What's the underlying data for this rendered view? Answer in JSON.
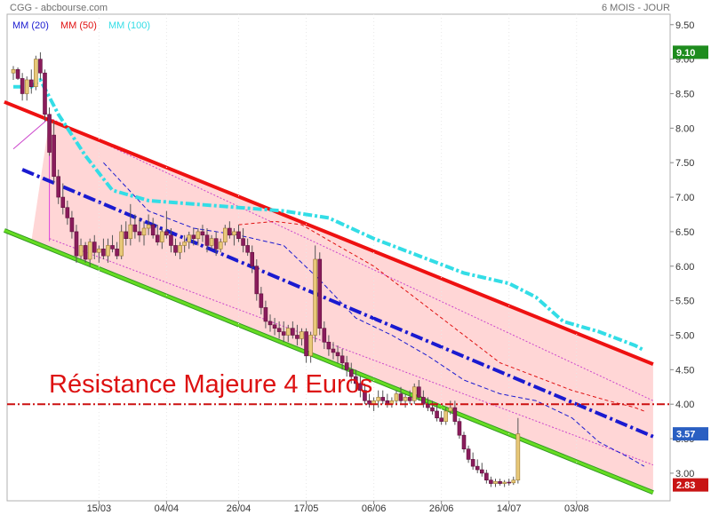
{
  "header": {
    "source": "CGG - abcbourse.com",
    "period": "6 MOIS - JOUR"
  },
  "legend": [
    {
      "label": "MM (20)",
      "color": "#1a1ad0"
    },
    {
      "label": "MM (50)",
      "color": "#e01010"
    },
    {
      "label": "MM (100)",
      "color": "#33dde6"
    }
  ],
  "annotation": {
    "text": "Résistance Majeure  4 Euros",
    "color": "#dd1111"
  },
  "price_badges": [
    {
      "value": 9.1,
      "label": "9.10",
      "color": "#1e8c1e"
    },
    {
      "value": 3.57,
      "label": "3.57",
      "color": "#2a5fc2"
    },
    {
      "value": 2.83,
      "label": "2.83",
      "color": "#c81414"
    }
  ],
  "chart_data": {
    "type": "candlestick",
    "title": "",
    "y_range": [
      2.6,
      9.6
    ],
    "y_ticks": [
      3.0,
      3.5,
      4.0,
      4.5,
      5.0,
      5.5,
      6.0,
      6.5,
      7.0,
      7.5,
      8.0,
      8.5,
      9.0,
      9.5
    ],
    "y_tick_labels": [
      "3.00",
      "3.50",
      "4.00",
      "4.50",
      "5.00",
      "5.50",
      "6.00",
      "6.50",
      "7.00",
      "7.50",
      "8.00",
      "8.50",
      "9.00",
      "9.50"
    ],
    "x_tick_labels": [
      {
        "label": "15/03",
        "index": 19
      },
      {
        "label": "04/04",
        "index": 34
      },
      {
        "label": "26/04",
        "index": 50
      },
      {
        "label": "17/05",
        "index": 65
      },
      {
        "label": "06/06",
        "index": 80
      },
      {
        "label": "26/06",
        "index": 95
      },
      {
        "label": "14/07",
        "index": 110
      },
      {
        "label": "03/08",
        "index": 125
      }
    ],
    "candles": [
      {
        "o": 8.8,
        "h": 8.9,
        "l": 8.7,
        "c": 8.85
      },
      {
        "o": 8.85,
        "h": 8.88,
        "l": 8.7,
        "c": 8.72
      },
      {
        "o": 8.72,
        "h": 8.8,
        "l": 8.4,
        "c": 8.5
      },
      {
        "o": 8.5,
        "h": 8.75,
        "l": 8.4,
        "c": 8.7
      },
      {
        "o": 8.7,
        "h": 8.85,
        "l": 8.5,
        "c": 8.6
      },
      {
        "o": 8.6,
        "h": 9.05,
        "l": 8.55,
        "c": 9.0
      },
      {
        "o": 9.0,
        "h": 9.1,
        "l": 8.7,
        "c": 8.8
      },
      {
        "o": 8.8,
        "h": 8.85,
        "l": 8.1,
        "c": 8.2
      },
      {
        "o": 8.2,
        "h": 8.3,
        "l": 7.6,
        "c": 7.65
      },
      {
        "o": 7.9,
        "h": 8.1,
        "l": 7.2,
        "c": 7.3
      },
      {
        "o": 7.3,
        "h": 7.4,
        "l": 6.9,
        "c": 7.0
      },
      {
        "o": 7.0,
        "h": 7.2,
        "l": 6.75,
        "c": 6.85
      },
      {
        "o": 6.85,
        "h": 6.95,
        "l": 6.6,
        "c": 6.7
      },
      {
        "o": 6.7,
        "h": 6.8,
        "l": 6.4,
        "c": 6.5
      },
      {
        "o": 6.5,
        "h": 6.6,
        "l": 6.05,
        "c": 6.15
      },
      {
        "o": 6.15,
        "h": 6.4,
        "l": 6.1,
        "c": 6.3
      },
      {
        "o": 6.3,
        "h": 6.35,
        "l": 6.05,
        "c": 6.1
      },
      {
        "o": 6.1,
        "h": 6.4,
        "l": 6.0,
        "c": 6.35
      },
      {
        "o": 6.35,
        "h": 6.45,
        "l": 6.1,
        "c": 6.2
      },
      {
        "o": 6.2,
        "h": 6.3,
        "l": 6.05,
        "c": 6.25
      },
      {
        "o": 6.25,
        "h": 6.4,
        "l": 6.1,
        "c": 6.15
      },
      {
        "o": 6.15,
        "h": 6.4,
        "l": 6.05,
        "c": 6.3
      },
      {
        "o": 6.3,
        "h": 6.45,
        "l": 6.2,
        "c": 6.25
      },
      {
        "o": 6.25,
        "h": 6.35,
        "l": 6.1,
        "c": 6.15
      },
      {
        "o": 6.15,
        "h": 6.6,
        "l": 6.1,
        "c": 6.5
      },
      {
        "o": 6.5,
        "h": 6.65,
        "l": 6.3,
        "c": 6.4
      },
      {
        "o": 6.4,
        "h": 6.9,
        "l": 6.3,
        "c": 6.6
      },
      {
        "o": 6.6,
        "h": 6.75,
        "l": 6.4,
        "c": 6.5
      },
      {
        "o": 6.5,
        "h": 6.7,
        "l": 6.35,
        "c": 6.45
      },
      {
        "o": 6.45,
        "h": 6.65,
        "l": 6.3,
        "c": 6.55
      },
      {
        "o": 6.55,
        "h": 6.75,
        "l": 6.45,
        "c": 6.6
      },
      {
        "o": 6.6,
        "h": 6.7,
        "l": 6.4,
        "c": 6.45
      },
      {
        "o": 6.45,
        "h": 6.6,
        "l": 6.3,
        "c": 6.35
      },
      {
        "o": 6.35,
        "h": 6.55,
        "l": 6.25,
        "c": 6.5
      },
      {
        "o": 6.5,
        "h": 6.8,
        "l": 6.4,
        "c": 6.45
      },
      {
        "o": 6.45,
        "h": 6.55,
        "l": 6.2,
        "c": 6.3
      },
      {
        "o": 6.3,
        "h": 6.4,
        "l": 6.15,
        "c": 6.2
      },
      {
        "o": 6.2,
        "h": 6.35,
        "l": 6.1,
        "c": 6.3
      },
      {
        "o": 6.3,
        "h": 6.45,
        "l": 6.2,
        "c": 6.35
      },
      {
        "o": 6.35,
        "h": 6.5,
        "l": 6.25,
        "c": 6.45
      },
      {
        "o": 6.45,
        "h": 6.55,
        "l": 6.3,
        "c": 6.4
      },
      {
        "o": 6.4,
        "h": 6.55,
        "l": 6.3,
        "c": 6.5
      },
      {
        "o": 6.5,
        "h": 6.6,
        "l": 6.35,
        "c": 6.45
      },
      {
        "o": 6.45,
        "h": 6.55,
        "l": 6.2,
        "c": 6.3
      },
      {
        "o": 6.3,
        "h": 6.45,
        "l": 6.25,
        "c": 6.4
      },
      {
        "o": 6.4,
        "h": 6.5,
        "l": 6.15,
        "c": 6.25
      },
      {
        "o": 6.25,
        "h": 6.4,
        "l": 6.2,
        "c": 6.35
      },
      {
        "o": 6.35,
        "h": 6.6,
        "l": 6.3,
        "c": 6.55
      },
      {
        "o": 6.55,
        "h": 6.65,
        "l": 6.4,
        "c": 6.45
      },
      {
        "o": 6.45,
        "h": 6.55,
        "l": 6.3,
        "c": 6.5
      },
      {
        "o": 6.5,
        "h": 6.6,
        "l": 6.35,
        "c": 6.4
      },
      {
        "o": 6.4,
        "h": 6.55,
        "l": 6.2,
        "c": 6.3
      },
      {
        "o": 6.3,
        "h": 6.4,
        "l": 6.15,
        "c": 6.2
      },
      {
        "o": 6.2,
        "h": 6.3,
        "l": 5.9,
        "c": 6.0
      },
      {
        "o": 6.0,
        "h": 6.1,
        "l": 5.5,
        "c": 5.6
      },
      {
        "o": 5.6,
        "h": 5.7,
        "l": 5.3,
        "c": 5.4
      },
      {
        "o": 5.4,
        "h": 5.5,
        "l": 5.1,
        "c": 5.2
      },
      {
        "o": 5.2,
        "h": 5.3,
        "l": 5.05,
        "c": 5.15
      },
      {
        "o": 5.15,
        "h": 5.25,
        "l": 5.0,
        "c": 5.1
      },
      {
        "o": 5.1,
        "h": 5.2,
        "l": 4.95,
        "c": 5.05
      },
      {
        "o": 5.05,
        "h": 5.2,
        "l": 4.9,
        "c": 5.0
      },
      {
        "o": 5.0,
        "h": 5.15,
        "l": 4.9,
        "c": 5.1
      },
      {
        "o": 5.1,
        "h": 5.2,
        "l": 4.95,
        "c": 5.0
      },
      {
        "o": 5.0,
        "h": 5.15,
        "l": 4.85,
        "c": 4.95
      },
      {
        "o": 4.95,
        "h": 5.1,
        "l": 4.85,
        "c": 5.05
      },
      {
        "o": 5.05,
        "h": 5.1,
        "l": 4.6,
        "c": 4.7
      },
      {
        "o": 4.7,
        "h": 5.05,
        "l": 4.6,
        "c": 5.0
      },
      {
        "o": 5.0,
        "h": 6.3,
        "l": 4.9,
        "c": 6.1
      },
      {
        "o": 6.1,
        "h": 6.2,
        "l": 5.0,
        "c": 5.1
      },
      {
        "o": 5.1,
        "h": 5.2,
        "l": 4.8,
        "c": 4.9
      },
      {
        "o": 4.9,
        "h": 5.0,
        "l": 4.7,
        "c": 4.8
      },
      {
        "o": 4.8,
        "h": 4.9,
        "l": 4.65,
        "c": 4.75
      },
      {
        "o": 4.75,
        "h": 4.85,
        "l": 4.6,
        "c": 4.7
      },
      {
        "o": 4.7,
        "h": 4.8,
        "l": 4.5,
        "c": 4.6
      },
      {
        "o": 4.6,
        "h": 4.7,
        "l": 4.4,
        "c": 4.5
      },
      {
        "o": 4.5,
        "h": 4.6,
        "l": 4.3,
        "c": 4.4
      },
      {
        "o": 4.4,
        "h": 4.5,
        "l": 4.2,
        "c": 4.3
      },
      {
        "o": 4.3,
        "h": 4.4,
        "l": 4.1,
        "c": 4.2
      },
      {
        "o": 4.2,
        "h": 4.3,
        "l": 4.0,
        "c": 4.05
      },
      {
        "o": 4.05,
        "h": 4.15,
        "l": 3.95,
        "c": 4.0
      },
      {
        "o": 4.0,
        "h": 4.1,
        "l": 3.9,
        "c": 4.05
      },
      {
        "o": 4.05,
        "h": 4.2,
        "l": 3.95,
        "c": 4.1
      },
      {
        "o": 4.1,
        "h": 4.2,
        "l": 4.0,
        "c": 4.05
      },
      {
        "o": 4.05,
        "h": 4.15,
        "l": 3.95,
        "c": 4.0
      },
      {
        "o": 4.0,
        "h": 4.1,
        "l": 3.95,
        "c": 4.05
      },
      {
        "o": 4.05,
        "h": 4.2,
        "l": 4.0,
        "c": 4.15
      },
      {
        "o": 4.15,
        "h": 4.25,
        "l": 4.0,
        "c": 4.05
      },
      {
        "o": 4.05,
        "h": 4.15,
        "l": 3.95,
        "c": 4.1
      },
      {
        "o": 4.1,
        "h": 4.2,
        "l": 4.0,
        "c": 4.05
      },
      {
        "o": 4.05,
        "h": 4.3,
        "l": 4.0,
        "c": 4.25
      },
      {
        "o": 4.25,
        "h": 4.35,
        "l": 4.05,
        "c": 4.1
      },
      {
        "o": 4.1,
        "h": 4.2,
        "l": 3.95,
        "c": 4.0
      },
      {
        "o": 4.0,
        "h": 4.1,
        "l": 3.9,
        "c": 3.95
      },
      {
        "o": 3.95,
        "h": 4.05,
        "l": 3.85,
        "c": 3.9
      },
      {
        "o": 3.9,
        "h": 4.0,
        "l": 3.75,
        "c": 3.8
      },
      {
        "o": 3.8,
        "h": 3.9,
        "l": 3.7,
        "c": 3.75
      },
      {
        "o": 3.75,
        "h": 3.95,
        "l": 3.7,
        "c": 3.9
      },
      {
        "o": 3.9,
        "h": 4.05,
        "l": 3.85,
        "c": 3.95
      },
      {
        "o": 3.95,
        "h": 4.05,
        "l": 3.7,
        "c": 3.75
      },
      {
        "o": 3.75,
        "h": 3.8,
        "l": 3.5,
        "c": 3.55
      },
      {
        "o": 3.55,
        "h": 3.6,
        "l": 3.3,
        "c": 3.35
      },
      {
        "o": 3.35,
        "h": 3.4,
        "l": 3.15,
        "c": 3.2
      },
      {
        "o": 3.2,
        "h": 3.3,
        "l": 3.05,
        "c": 3.1
      },
      {
        "o": 3.1,
        "h": 3.2,
        "l": 3.0,
        "c": 3.05
      },
      {
        "o": 3.05,
        "h": 3.15,
        "l": 2.95,
        "c": 3.0
      },
      {
        "o": 3.0,
        "h": 3.05,
        "l": 2.85,
        "c": 2.9
      },
      {
        "o": 2.9,
        "h": 2.95,
        "l": 2.8,
        "c": 2.85
      },
      {
        "o": 2.85,
        "h": 2.92,
        "l": 2.8,
        "c": 2.88
      },
      {
        "o": 2.88,
        "h": 2.92,
        "l": 2.82,
        "c": 2.85
      },
      {
        "o": 2.85,
        "h": 2.9,
        "l": 2.8,
        "c": 2.87
      },
      {
        "o": 2.87,
        "h": 2.92,
        "l": 2.82,
        "c": 2.86
      },
      {
        "o": 2.86,
        "h": 2.95,
        "l": 2.83,
        "c": 2.9
      },
      {
        "o": 2.9,
        "h": 3.8,
        "l": 2.85,
        "c": 3.57
      }
    ],
    "moving_averages": [
      {
        "name": "MM (20)",
        "color": "#1a1ad0",
        "points": [
          [
            20,
            7.5
          ],
          [
            30,
            6.8
          ],
          [
            40,
            6.55
          ],
          [
            50,
            6.45
          ],
          [
            60,
            6.3
          ],
          [
            68,
            5.8
          ],
          [
            76,
            5.25
          ],
          [
            84,
            5.0
          ],
          [
            92,
            4.7
          ],
          [
            100,
            4.35
          ],
          [
            108,
            4.15
          ],
          [
            116,
            4.05
          ],
          [
            124,
            3.8
          ],
          [
            130,
            3.45
          ],
          [
            136,
            3.25
          ],
          [
            140,
            3.1
          ]
        ]
      },
      {
        "name": "MM (50)",
        "color": "#e01010",
        "points": [
          [
            50,
            6.6
          ],
          [
            58,
            6.65
          ],
          [
            64,
            6.6
          ],
          [
            72,
            6.3
          ],
          [
            80,
            6.0
          ],
          [
            90,
            5.5
          ],
          [
            100,
            5.0
          ],
          [
            108,
            4.6
          ],
          [
            116,
            4.4
          ],
          [
            124,
            4.2
          ],
          [
            132,
            4.05
          ],
          [
            138,
            3.95
          ],
          [
            140,
            3.9
          ]
        ]
      },
      {
        "name": "MM (100)",
        "color": "#33dde6",
        "points": [
          [
            0,
            8.6
          ],
          [
            4,
            8.6
          ],
          [
            6,
            8.7
          ],
          [
            10,
            8.2
          ],
          [
            16,
            7.6
          ],
          [
            22,
            7.1
          ],
          [
            30,
            6.95
          ],
          [
            40,
            6.9
          ],
          [
            50,
            6.85
          ],
          [
            60,
            6.8
          ],
          [
            70,
            6.7
          ],
          [
            80,
            6.4
          ],
          [
            90,
            6.15
          ],
          [
            100,
            5.9
          ],
          [
            110,
            5.75
          ],
          [
            116,
            5.55
          ],
          [
            122,
            5.2
          ],
          [
            130,
            5.05
          ],
          [
            138,
            4.85
          ],
          [
            140,
            4.78
          ]
        ]
      }
    ],
    "channel": {
      "resistance": [
        [
          -2,
          8.38
        ],
        [
          142,
          4.58
        ]
      ],
      "support": [
        [
          -2,
          6.52
        ],
        [
          142,
          2.72
        ]
      ],
      "midline": [
        [
          2,
          7.4
        ],
        [
          142,
          3.53
        ]
      ],
      "inner_upper": [
        [
          8,
          8.15
        ],
        [
          142,
          4.05
        ]
      ],
      "inner_lower": [
        [
          8,
          6.4
        ],
        [
          142,
          3.12
        ]
      ],
      "fill_start_index": 8,
      "color_resistance": "#ee1111",
      "color_support": "#66dd22",
      "color_midline": "#1a1ad0",
      "color_fill": "#ffd6d6"
    },
    "resistance_level": {
      "value": 4.0,
      "color": "#cc1111"
    }
  }
}
